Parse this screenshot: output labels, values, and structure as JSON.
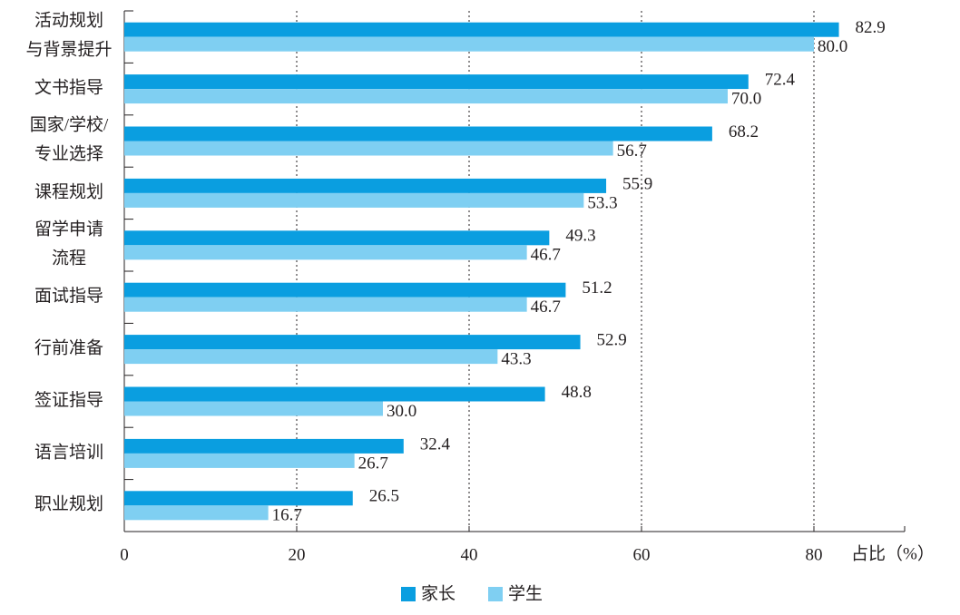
{
  "chart_data": {
    "type": "hbar",
    "categories": [
      "活动规划\n与背景提升",
      "文书指导",
      "国家/学校/\n专业选择",
      "课程规划",
      "留学申请\n流程",
      "面试指导",
      "行前准备",
      "签证指导",
      "语言培训",
      "职业规划"
    ],
    "series": [
      {
        "name": "家长",
        "color": "#0a9ee0",
        "values": [
          82.9,
          72.4,
          68.2,
          55.9,
          49.3,
          51.2,
          52.9,
          48.8,
          32.4,
          26.5
        ],
        "value_labels": [
          "82.9",
          "72.4",
          "68.2",
          "55.9",
          "49.3",
          "51.2",
          "52.9",
          "48.8",
          "32.4",
          "26.5"
        ]
      },
      {
        "name": "学生",
        "color": "#7fcff2",
        "values": [
          80.0,
          70.0,
          56.7,
          53.3,
          46.7,
          46.7,
          43.3,
          30.0,
          26.7,
          16.7
        ],
        "value_labels": [
          "80.0",
          "70.0",
          "56.7",
          "53.3",
          "46.7",
          "46.7",
          "43.3",
          "30.0",
          "26.7",
          "16.7"
        ]
      }
    ],
    "x_label": "占比（%）",
    "xlim": [
      0,
      90
    ],
    "xticks": [
      0,
      20,
      40,
      60,
      80
    ],
    "grid": true,
    "legend": "bottom"
  }
}
